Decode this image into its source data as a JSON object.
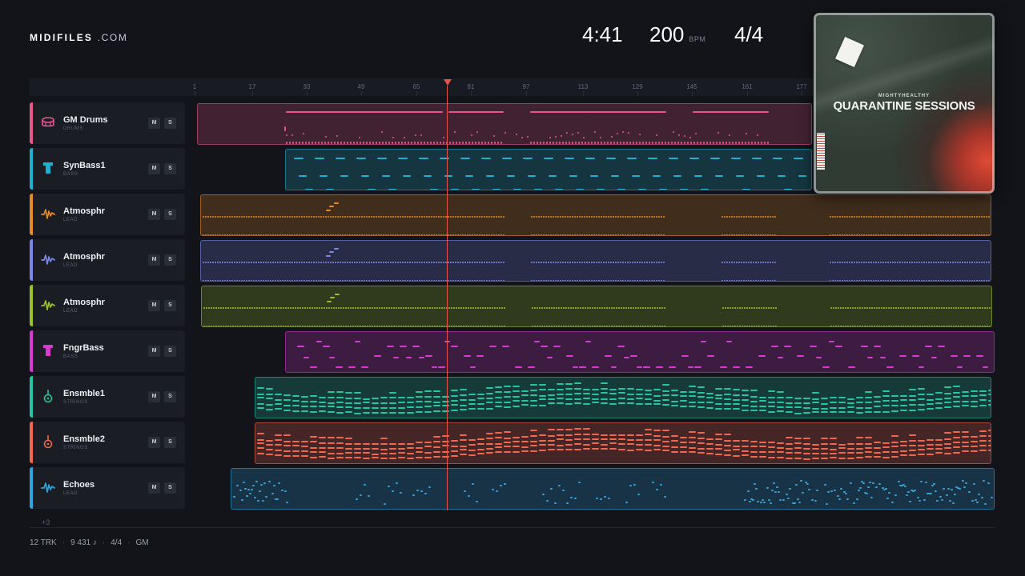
{
  "brand": {
    "name": "MIDIFILES",
    "tld": ".COM"
  },
  "transport": {
    "time": "4:41",
    "tempo": "200",
    "tempo_unit": "BPM",
    "meter": "4/4"
  },
  "ruler": {
    "marks": [
      "1",
      "17",
      "33",
      "49",
      "65",
      "81",
      "97",
      "113",
      "129",
      "145",
      "161",
      "177"
    ]
  },
  "playhead": {
    "bar": 76
  },
  "tracks": [
    {
      "name": "GM Drums",
      "category": "DRUMS",
      "color": "#e8578a",
      "icon": "drum-icon",
      "mute_label": "M",
      "solo_label": "S"
    },
    {
      "name": "SynBass1",
      "category": "BASS",
      "color": "#1fb1cf",
      "icon": "bass-icon",
      "mute_label": "M",
      "solo_label": "S"
    },
    {
      "name": "Atmosphr",
      "category": "LEAD",
      "color": "#e88a26",
      "icon": "waveform-icon",
      "mute_label": "M",
      "solo_label": "S"
    },
    {
      "name": "Atmosphr",
      "category": "LEAD",
      "color": "#7a86e8",
      "icon": "waveform-icon",
      "mute_label": "M",
      "solo_label": "S"
    },
    {
      "name": "Atmosphr",
      "category": "LEAD",
      "color": "#9cc22a",
      "icon": "waveform-icon",
      "mute_label": "M",
      "solo_label": "S"
    },
    {
      "name": "FngrBass",
      "category": "BASS",
      "color": "#d83ad2",
      "icon": "bass-icon",
      "mute_label": "M",
      "solo_label": "S"
    },
    {
      "name": "Ensmble1",
      "category": "STRINGS",
      "color": "#25c4a2",
      "icon": "guitar-icon",
      "mute_label": "M",
      "solo_label": "S"
    },
    {
      "name": "Ensmble2",
      "category": "STRINGS",
      "color": "#f2684f",
      "icon": "guitar-icon",
      "mute_label": "M",
      "solo_label": "S"
    },
    {
      "name": "Echoes",
      "category": "LEAD",
      "color": "#2ea6e0",
      "icon": "waveform-icon",
      "mute_label": "M",
      "solo_label": "S"
    }
  ],
  "more_tracks": "+3",
  "footer": {
    "tracks": "12 TRK",
    "notes": "9 431 ♪",
    "meter": "4/4",
    "standard": "GM"
  },
  "album": {
    "artist": "MIGHTYHEALTHY",
    "title": "QUARANTINE SESSIONS"
  }
}
